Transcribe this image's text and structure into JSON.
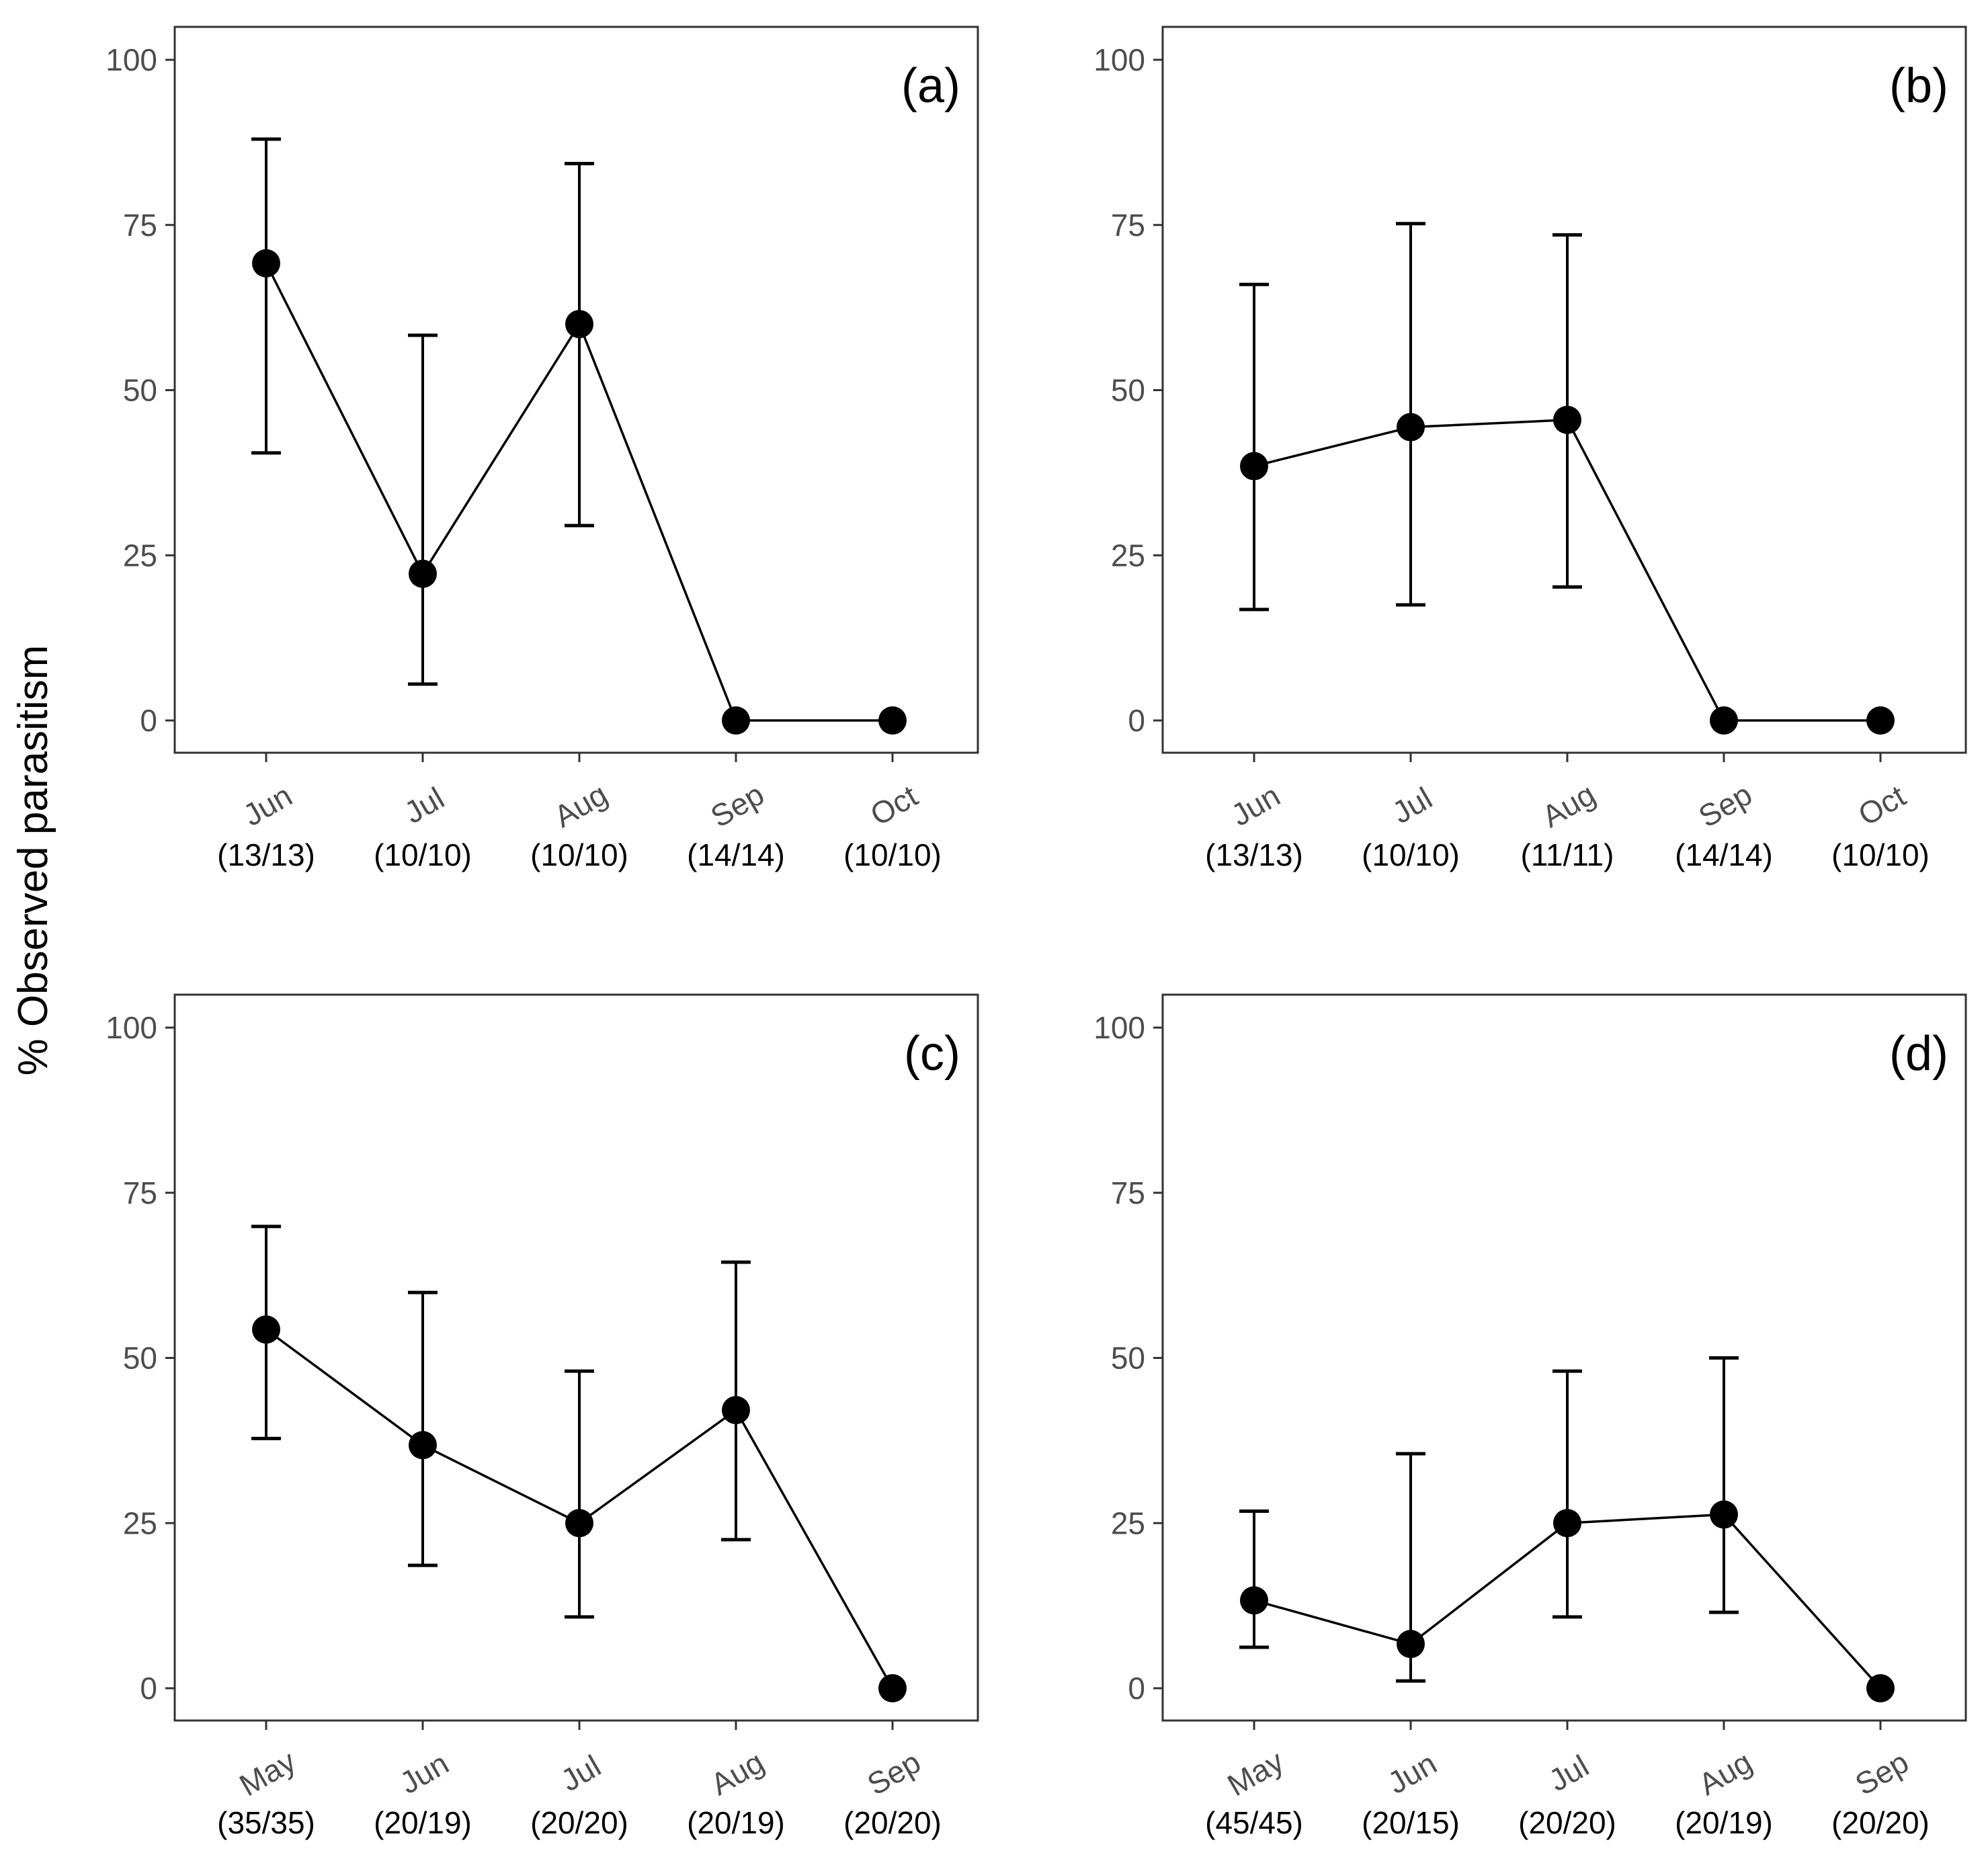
{
  "figure": {
    "ylabel": "% Observed parasitism",
    "colors": {
      "series": "#000000",
      "tick_text": "#4d4d4d",
      "frame": "#333333"
    }
  },
  "chart_data": [
    {
      "type": "line",
      "panel": "(a)",
      "categories": [
        "Jun",
        "Jul",
        "Aug",
        "Sep",
        "Oct"
      ],
      "counts": [
        "(13/13)",
        "(10/10)",
        "(10/10)",
        "(14/14)",
        "(10/10)"
      ],
      "values": [
        69.2,
        22.2,
        60.0,
        0,
        0
      ],
      "lower": [
        40.5,
        5.5,
        29.5,
        null,
        null
      ],
      "upper": [
        88.0,
        58.3,
        84.3,
        null,
        null
      ],
      "ylim": [
        0,
        100
      ],
      "yticks": [
        0,
        25,
        50,
        75,
        100
      ],
      "grid": false
    },
    {
      "type": "line",
      "panel": "(b)",
      "categories": [
        "Jun",
        "Jul",
        "Aug",
        "Sep",
        "Oct"
      ],
      "counts": [
        "(13/13)",
        "(10/10)",
        "(11/11)",
        "(14/14)",
        "(10/10)"
      ],
      "values": [
        38.5,
        44.4,
        45.5,
        0,
        0
      ],
      "lower": [
        16.8,
        17.5,
        20.2,
        null,
        null
      ],
      "upper": [
        66.0,
        75.2,
        73.5,
        null,
        null
      ],
      "ylim": [
        0,
        100
      ],
      "yticks": [
        0,
        25,
        50,
        75,
        100
      ],
      "grid": false
    },
    {
      "type": "line",
      "panel": "(c)",
      "categories": [
        "May",
        "Jun",
        "Jul",
        "Aug",
        "Sep"
      ],
      "counts": [
        "(35/35)",
        "(20/19)",
        "(20/20)",
        "(20/19)",
        "(20/20)"
      ],
      "values": [
        54.3,
        36.8,
        25.0,
        42.1,
        0
      ],
      "lower": [
        37.8,
        18.6,
        10.8,
        22.5,
        null
      ],
      "upper": [
        69.9,
        59.9,
        48.0,
        64.5,
        null
      ],
      "ylim": [
        0,
        100
      ],
      "yticks": [
        0,
        25,
        50,
        75,
        100
      ],
      "grid": false
    },
    {
      "type": "line",
      "panel": "(d)",
      "categories": [
        "May",
        "Jun",
        "Jul",
        "Aug",
        "Sep"
      ],
      "counts": [
        "(45/45)",
        "(20/15)",
        "(20/20)",
        "(20/19)",
        "(20/20)"
      ],
      "values": [
        13.3,
        6.7,
        25.0,
        26.3,
        0
      ],
      "lower": [
        6.2,
        1.1,
        10.8,
        11.5,
        null
      ],
      "upper": [
        26.8,
        35.5,
        48.0,
        50.0,
        null
      ],
      "ylim": [
        0,
        100
      ],
      "yticks": [
        0,
        25,
        50,
        75,
        100
      ],
      "grid": false
    }
  ]
}
